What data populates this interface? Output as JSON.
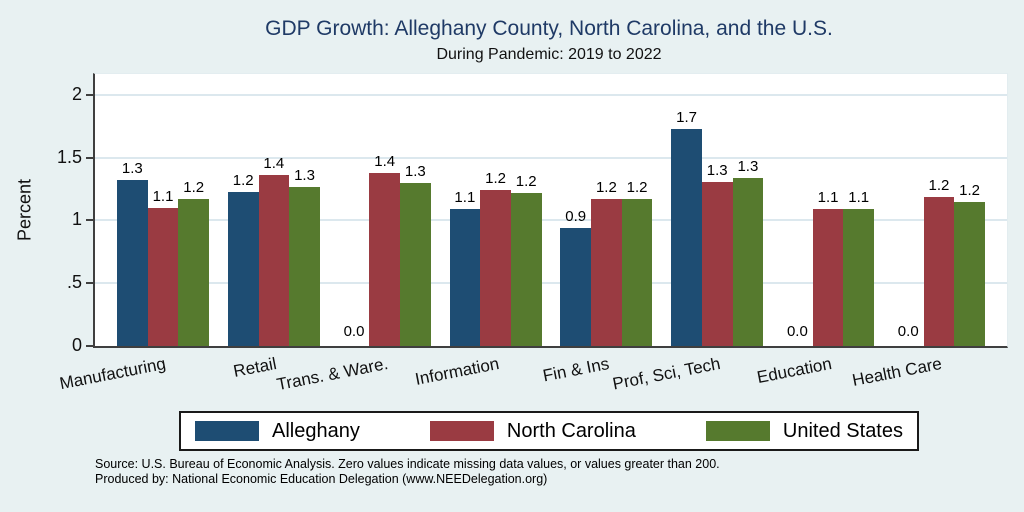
{
  "chart_data": {
    "type": "bar",
    "title": "GDP Growth: Alleghany County, North Carolina, and the U.S.",
    "subtitle": "During Pandemic: 2019 to 2022",
    "ylabel": "Percent",
    "ylim": [
      0,
      2.167
    ],
    "grid": true,
    "legend_position": "bottom",
    "yticks": [
      {
        "value": 0,
        "label": "0"
      },
      {
        "value": 0.5,
        "label": ".5"
      },
      {
        "value": 1,
        "label": "1"
      },
      {
        "value": 1.5,
        "label": "1.5"
      },
      {
        "value": 2,
        "label": "2"
      }
    ],
    "categories": [
      "Manufacturing",
      "Retail",
      "Trans. & Ware.",
      "Information",
      "Fin & Ins",
      "Prof, Sci, Tech",
      "Education",
      "Health Care"
    ],
    "series": [
      {
        "name": "Alleghany",
        "color": "#1e4d73",
        "values": [
          1.32,
          1.23,
          0.0,
          1.09,
          0.94,
          1.73,
          0.0,
          0.0
        ],
        "labels": [
          "1.3",
          "1.2",
          "0.0",
          "1.1",
          "0.9",
          "1.7",
          "0.0",
          "0.0"
        ]
      },
      {
        "name": "North Carolina",
        "color": "#9a3b42",
        "values": [
          1.1,
          1.36,
          1.38,
          1.24,
          1.17,
          1.31,
          1.09,
          1.19
        ],
        "labels": [
          "1.1",
          "1.4",
          "1.4",
          "1.2",
          "1.2",
          "1.3",
          "1.1",
          "1.2"
        ]
      },
      {
        "name": "United States",
        "color": "#567a2e",
        "values": [
          1.17,
          1.27,
          1.3,
          1.22,
          1.17,
          1.34,
          1.09,
          1.15
        ],
        "labels": [
          "1.2",
          "1.3",
          "1.3",
          "1.2",
          "1.2",
          "1.3",
          "1.1",
          "1.2"
        ]
      }
    ],
    "notes": [
      "Source: U.S. Bureau of Economic Analysis. Zero values indicate missing data values, or values greater than 200.",
      "Produced by: National Economic Education Delegation (www.NEEDelegation.org)"
    ]
  }
}
